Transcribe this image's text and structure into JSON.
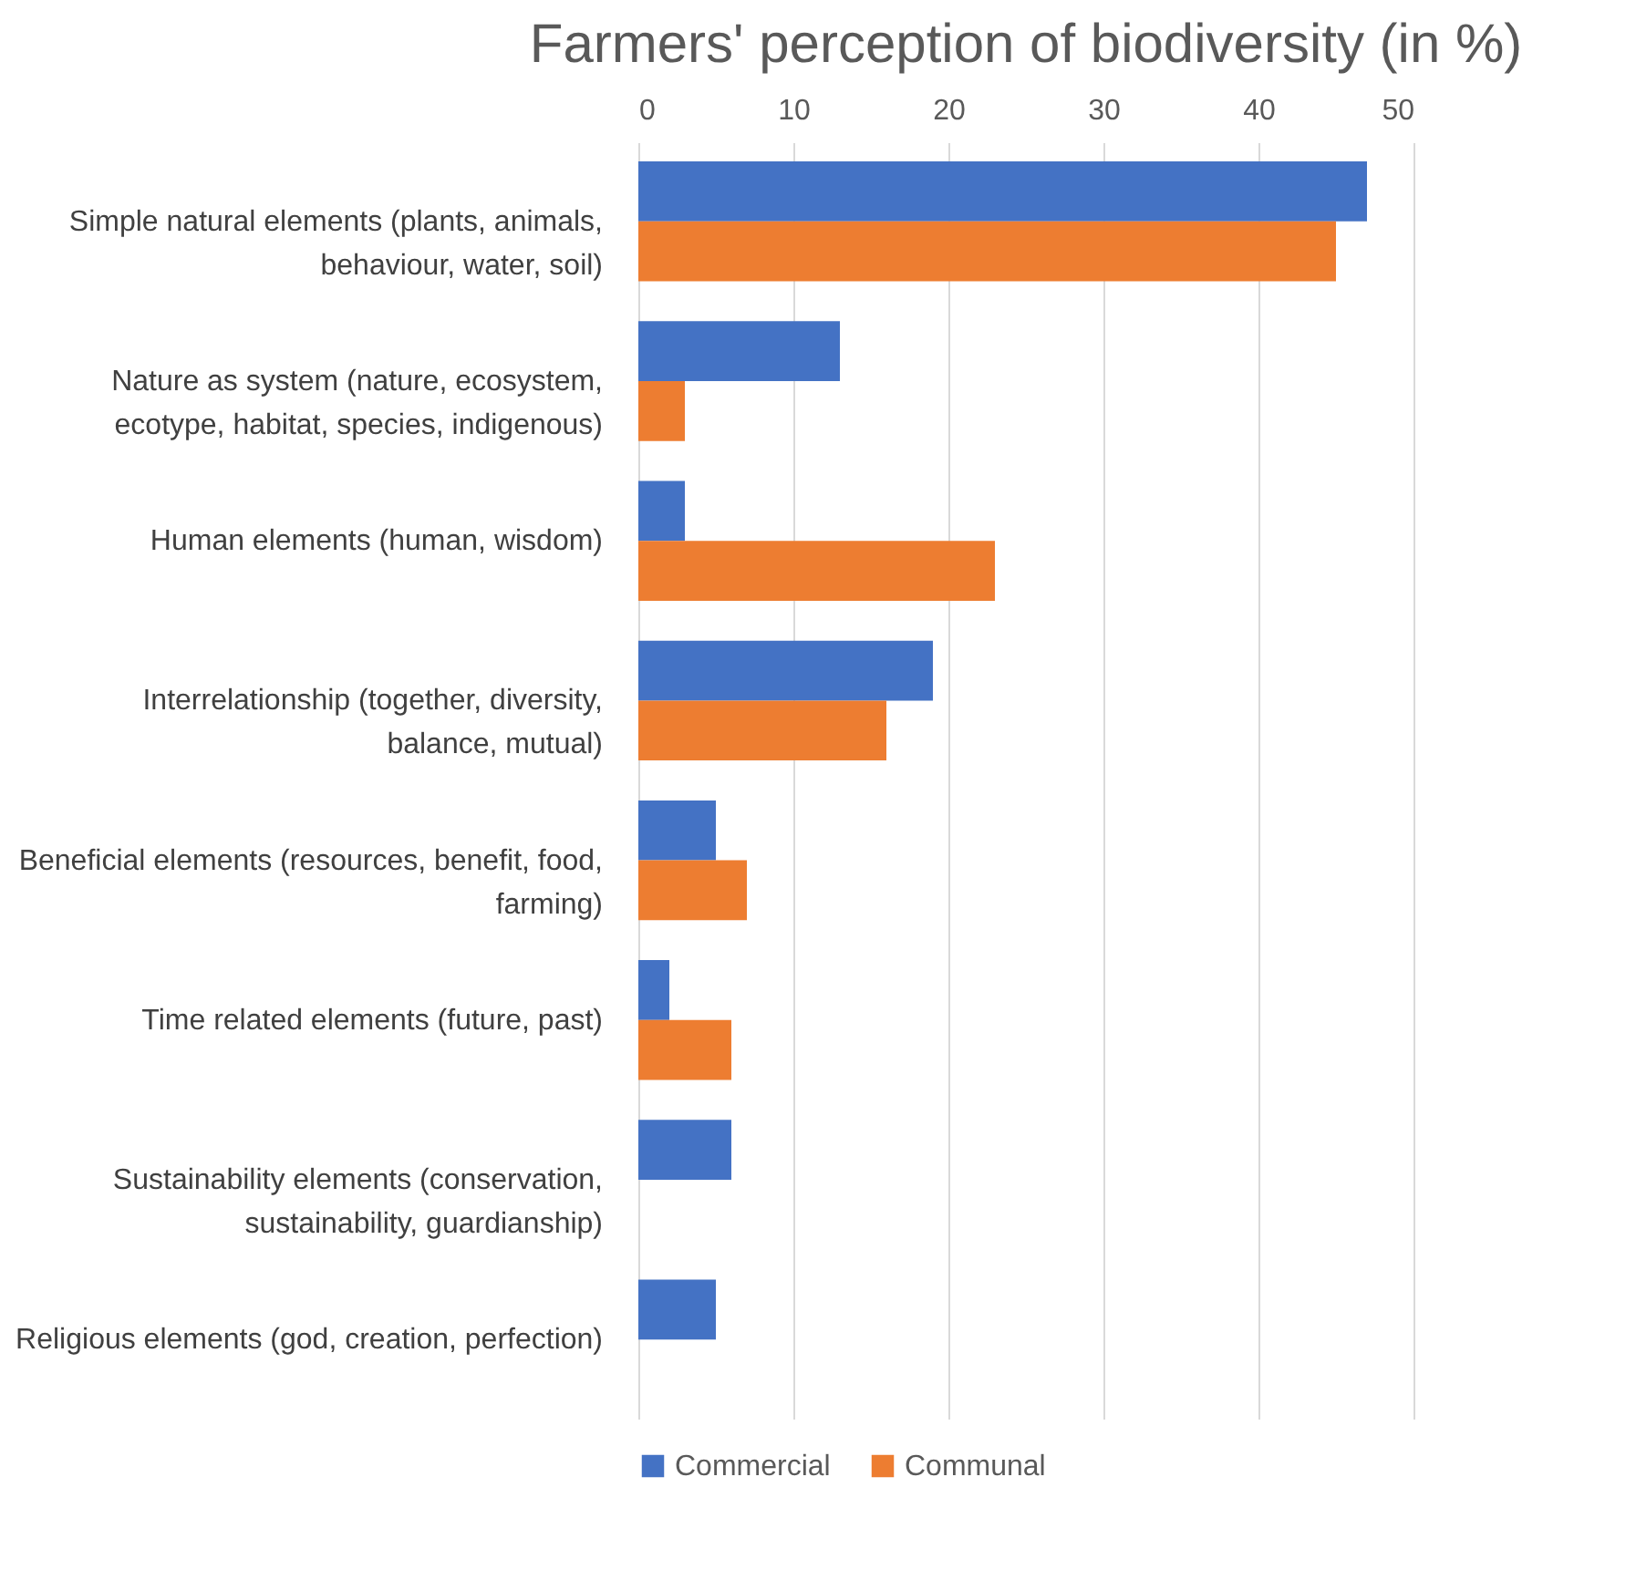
{
  "chart_data": {
    "type": "bar",
    "orientation": "horizontal",
    "title": "Farmers' perception of biodiversity (in %)",
    "categories": [
      "Simple natural elements (plants, animals,\nbehaviour, water, soil)",
      "Nature as system (nature, ecosystem,\necotype, habitat, species, indigenous)",
      "Human elements (human, wisdom)",
      "Interrelationship (together, diversity,\nbalance, mutual)",
      "Beneficial elements (resources, benefit, food,\nfarming)",
      "Time related elements (future, past)",
      "Sustainability elements (conservation,\nsustainability, guardianship)",
      "Religious elements (god, creation, perfection)"
    ],
    "series": [
      {
        "name": "Commercial",
        "color": "#4472c4",
        "values": [
          47,
          13,
          3,
          19,
          5,
          2,
          6,
          5
        ]
      },
      {
        "name": "Communal",
        "color": "#ed7d31",
        "values": [
          45,
          3,
          23,
          16,
          7,
          6,
          null,
          null
        ]
      }
    ],
    "xlim": [
      0,
      50
    ],
    "xticks": [
      0,
      10,
      20,
      30,
      40,
      50
    ],
    "grid": "x",
    "legend": "bottom"
  }
}
